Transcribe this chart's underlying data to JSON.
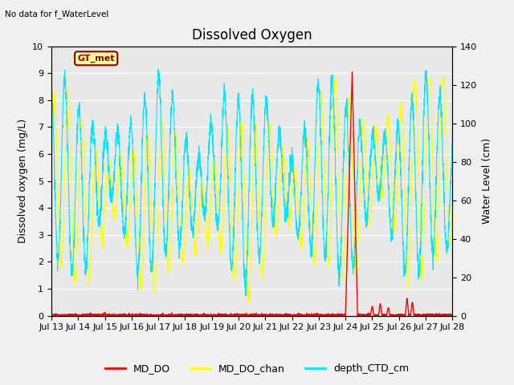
{
  "title": "Dissolved Oxygen",
  "top_label": "No data for f_WaterLevel",
  "gt_met_label": "GT_met",
  "ylabel_left": "Dissolved oxygen (mg/L)",
  "ylabel_right": "Water Level (cm)",
  "ylim_left": [
    0.0,
    10.0
  ],
  "ylim_right": [
    0,
    140
  ],
  "yticks_left": [
    0.0,
    1.0,
    2.0,
    3.0,
    4.0,
    5.0,
    6.0,
    7.0,
    8.0,
    9.0,
    10.0
  ],
  "yticks_right": [
    0,
    20,
    40,
    60,
    80,
    100,
    120,
    140
  ],
  "xtick_labels": [
    "Jul 13",
    "Jul 14",
    "Jul 15",
    "Jul 16",
    "Jul 17",
    "Jul 18",
    "Jul 19",
    "Jul 20",
    "Jul 21",
    "Jul 22",
    "Jul 23",
    "Jul 24",
    "Jul 25",
    "Jul 26",
    "Jul 27",
    "Jul 28"
  ],
  "color_MD_DO": "#ff0000",
  "color_MD_DO_chan": "#ffff00",
  "color_depth_CTD_cm": "#00e5ff",
  "legend_labels": [
    "MD_DO",
    "MD_DO_chan",
    "depth_CTD_cm"
  ],
  "background_color": "#f0f0f0",
  "plot_bg_color": "#e8e8e8",
  "title_fontsize": 12,
  "label_fontsize": 9,
  "tick_fontsize": 8
}
